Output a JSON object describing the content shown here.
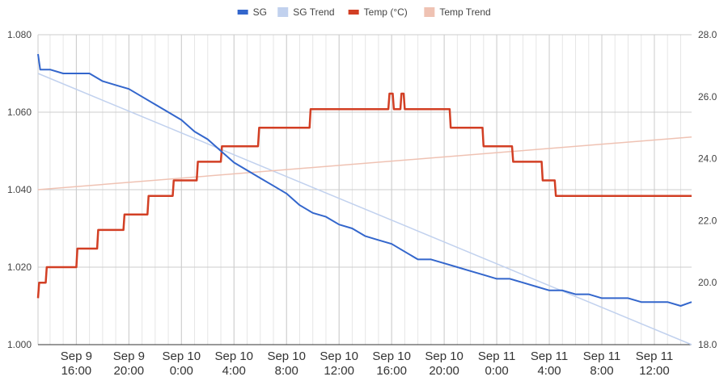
{
  "chart_data": {
    "type": "line",
    "title": "",
    "xlabel": "",
    "ylabel": "",
    "legend": {
      "placement": "top",
      "items": [
        {
          "label": "SG",
          "color": "#3366cc"
        },
        {
          "label": "SG Trend",
          "color": "#c1d1ee"
        },
        {
          "label": "Temp (°C)",
          "color": "#d23f24"
        },
        {
          "label": "Temp Trend",
          "color": "#efc2b3"
        }
      ]
    },
    "x_range": [
      "Sep 9 13:05",
      "Sep 11 14:50"
    ],
    "x_ticks": [
      {
        "value": "Sep 9 16:00",
        "line1": "Sep 9",
        "line2": "16:00"
      },
      {
        "value": "Sep 9 20:00",
        "line1": "Sep 9",
        "line2": "20:00"
      },
      {
        "value": "Sep 10 0:00",
        "line1": "Sep 10",
        "line2": "0:00"
      },
      {
        "value": "Sep 10 4:00",
        "line1": "Sep 10",
        "line2": "4:00"
      },
      {
        "value": "Sep 10 8:00",
        "line1": "Sep 10",
        "line2": "8:00"
      },
      {
        "value": "Sep 10 12:00",
        "line1": "Sep 10",
        "line2": "12:00"
      },
      {
        "value": "Sep 10 16:00",
        "line1": "Sep 10",
        "line2": "16:00"
      },
      {
        "value": "Sep 10 20:00",
        "line1": "Sep 10",
        "line2": "20:00"
      },
      {
        "value": "Sep 11 0:00",
        "line1": "Sep 11",
        "line2": "0:00"
      },
      {
        "value": "Sep 11 4:00",
        "line1": "Sep 11",
        "line2": "4:00"
      },
      {
        "value": "Sep 11 8:00",
        "line1": "Sep 11",
        "line2": "8:00"
      },
      {
        "value": "Sep 11 12:00",
        "line1": "Sep 11",
        "line2": "12:00"
      }
    ],
    "grid": true,
    "y_left": {
      "range": [
        1.0,
        1.08
      ],
      "ticks": [
        "1.000",
        "1.020",
        "1.040",
        "1.060",
        "1.080"
      ],
      "series": "SG"
    },
    "y_right": {
      "range": [
        18.0,
        28.0
      ],
      "ticks": [
        "18.0",
        "20.0",
        "22.0",
        "24.0",
        "26.0",
        "28.0"
      ],
      "series": "Temp (°C)"
    },
    "series": [
      {
        "name": "SG",
        "axis": "left",
        "color": "#3366cc",
        "points": [
          [
            "Sep 9 13:05",
            1.075
          ],
          [
            "Sep 9 13:15",
            1.071
          ],
          [
            "Sep 9 14:00",
            1.071
          ],
          [
            "Sep 9 15:00",
            1.07
          ],
          [
            "Sep 9 16:00",
            1.07
          ],
          [
            "Sep 9 17:00",
            1.07
          ],
          [
            "Sep 9 18:00",
            1.068
          ],
          [
            "Sep 9 19:00",
            1.067
          ],
          [
            "Sep 9 20:00",
            1.066
          ],
          [
            "Sep 9 21:00",
            1.064
          ],
          [
            "Sep 9 22:00",
            1.062
          ],
          [
            "Sep 9 23:00",
            1.06
          ],
          [
            "Sep 10 0:00",
            1.058
          ],
          [
            "Sep 10 1:00",
            1.055
          ],
          [
            "Sep 10 2:00",
            1.053
          ],
          [
            "Sep 10 3:00",
            1.05
          ],
          [
            "Sep 10 4:00",
            1.047
          ],
          [
            "Sep 10 5:00",
            1.045
          ],
          [
            "Sep 10 6:00",
            1.043
          ],
          [
            "Sep 10 7:00",
            1.041
          ],
          [
            "Sep 10 8:00",
            1.039
          ],
          [
            "Sep 10 9:00",
            1.036
          ],
          [
            "Sep 10 10:00",
            1.034
          ],
          [
            "Sep 10 11:00",
            1.033
          ],
          [
            "Sep 10 12:00",
            1.031
          ],
          [
            "Sep 10 13:00",
            1.03
          ],
          [
            "Sep 10 14:00",
            1.028
          ],
          [
            "Sep 10 15:00",
            1.027
          ],
          [
            "Sep 10 16:00",
            1.026
          ],
          [
            "Sep 10 17:00",
            1.024
          ],
          [
            "Sep 10 18:00",
            1.022
          ],
          [
            "Sep 10 19:00",
            1.022
          ],
          [
            "Sep 10 20:00",
            1.021
          ],
          [
            "Sep 10 21:00",
            1.02
          ],
          [
            "Sep 10 22:00",
            1.019
          ],
          [
            "Sep 10 23:00",
            1.018
          ],
          [
            "Sep 11 0:00",
            1.017
          ],
          [
            "Sep 11 1:00",
            1.017
          ],
          [
            "Sep 11 2:00",
            1.016
          ],
          [
            "Sep 11 3:00",
            1.015
          ],
          [
            "Sep 11 4:00",
            1.014
          ],
          [
            "Sep 11 5:00",
            1.014
          ],
          [
            "Sep 11 6:00",
            1.013
          ],
          [
            "Sep 11 7:00",
            1.013
          ],
          [
            "Sep 11 8:00",
            1.012
          ],
          [
            "Sep 11 9:00",
            1.012
          ],
          [
            "Sep 11 10:00",
            1.012
          ],
          [
            "Sep 11 11:00",
            1.011
          ],
          [
            "Sep 11 12:00",
            1.011
          ],
          [
            "Sep 11 13:00",
            1.011
          ],
          [
            "Sep 11 14:00",
            1.01
          ],
          [
            "Sep 11 14:50",
            1.011
          ]
        ]
      },
      {
        "name": "SG Trend",
        "axis": "left",
        "color": "#c1d1ee",
        "points": [
          [
            "Sep 9 13:05",
            1.07
          ],
          [
            "Sep 11 14:50",
            1.0
          ]
        ]
      },
      {
        "name": "Temp (°C)",
        "axis": "right",
        "color": "#d23f24",
        "points": [
          [
            "Sep 9 13:05",
            19.5
          ],
          [
            "Sep 9 13:10",
            20.0
          ],
          [
            "Sep 9 13:40",
            20.0
          ],
          [
            "Sep 9 13:45",
            20.5
          ],
          [
            "Sep 9 16:00",
            20.5
          ],
          [
            "Sep 9 16:05",
            21.1
          ],
          [
            "Sep 9 17:35",
            21.1
          ],
          [
            "Sep 9 17:40",
            21.7
          ],
          [
            "Sep 9 19:35",
            21.7
          ],
          [
            "Sep 9 19:40",
            22.2
          ],
          [
            "Sep 9 21:25",
            22.2
          ],
          [
            "Sep 9 21:30",
            22.8
          ],
          [
            "Sep 9 23:20",
            22.8
          ],
          [
            "Sep 9 23:25",
            23.3
          ],
          [
            "Sep 10 1:10",
            23.3
          ],
          [
            "Sep 10 1:15",
            23.9
          ],
          [
            "Sep 10 3:00",
            23.9
          ],
          [
            "Sep 10 3:05",
            24.4
          ],
          [
            "Sep 10 5:50",
            24.4
          ],
          [
            "Sep 10 5:55",
            25.0
          ],
          [
            "Sep 10 9:45",
            25.0
          ],
          [
            "Sep 10 9:50",
            25.6
          ],
          [
            "Sep 10 15:45",
            25.6
          ],
          [
            "Sep 10 15:50",
            26.1
          ],
          [
            "Sep 10 16:05",
            26.1
          ],
          [
            "Sep 10 16:10",
            25.6
          ],
          [
            "Sep 10 16:40",
            25.6
          ],
          [
            "Sep 10 16:45",
            26.1
          ],
          [
            "Sep 10 16:55",
            26.1
          ],
          [
            "Sep 10 17:00",
            25.6
          ],
          [
            "Sep 10 20:25",
            25.6
          ],
          [
            "Sep 10 20:30",
            25.0
          ],
          [
            "Sep 10 22:55",
            25.0
          ],
          [
            "Sep 10 23:00",
            24.4
          ],
          [
            "Sep 11 1:10",
            24.4
          ],
          [
            "Sep 11 1:15",
            23.9
          ],
          [
            "Sep 11 3:25",
            23.9
          ],
          [
            "Sep 11 3:30",
            23.3
          ],
          [
            "Sep 11 4:25",
            23.3
          ],
          [
            "Sep 11 4:30",
            22.8
          ],
          [
            "Sep 11 8:00",
            22.8
          ],
          [
            "Sep 11 8:05",
            22.8
          ],
          [
            "Sep 11 14:50",
            22.8
          ]
        ]
      },
      {
        "name": "Temp Trend",
        "axis": "right",
        "color": "#efc2b3",
        "points": [
          [
            "Sep 9 13:05",
            23.0
          ],
          [
            "Sep 11 14:50",
            24.7
          ]
        ]
      }
    ]
  }
}
